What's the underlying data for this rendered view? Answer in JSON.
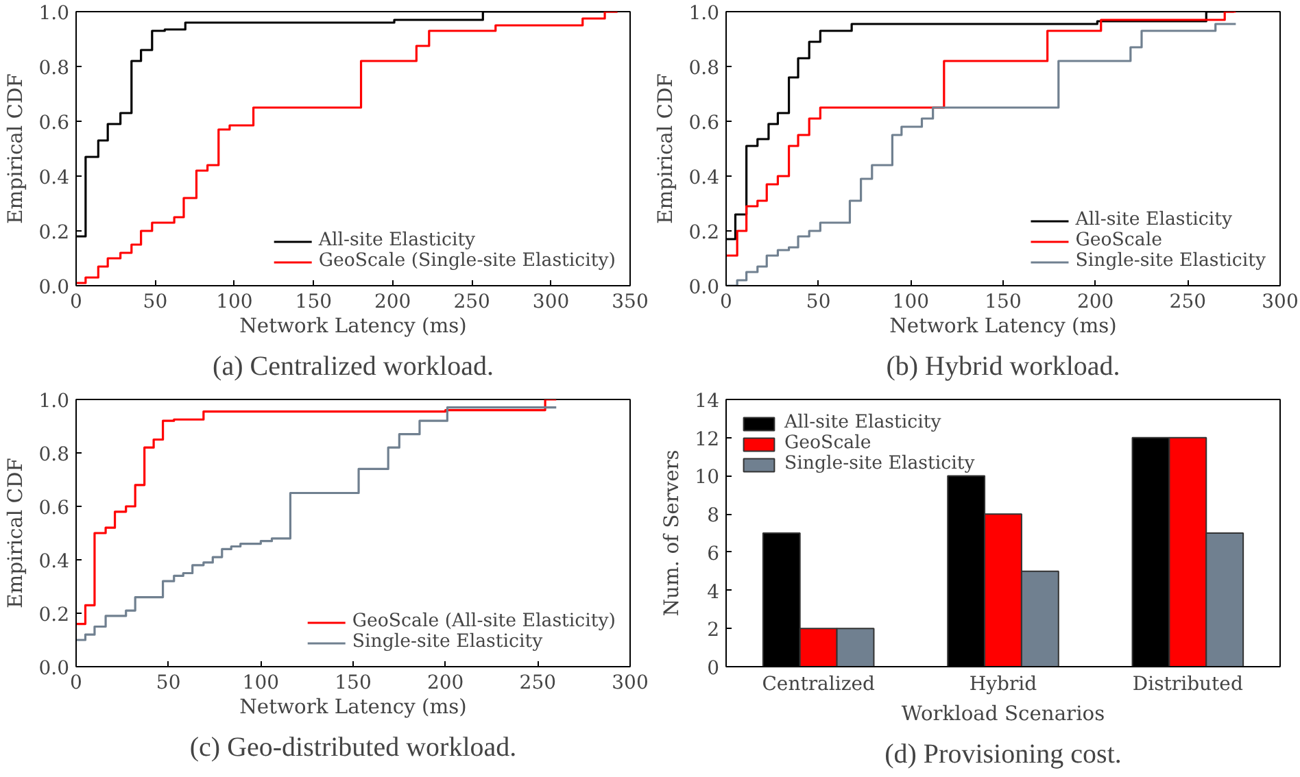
{
  "chart_data": [
    {
      "type": "step",
      "title": "(a) Centralized workload.",
      "xlabel": "Network Latency (ms)",
      "ylabel": "Empirical CDF",
      "xlim": [
        0,
        350
      ],
      "xticks": [
        0,
        50,
        100,
        150,
        200,
        250,
        300,
        350
      ],
      "ylim": [
        0,
        1
      ],
      "yticks": [
        {
          "value": 0,
          "label": "0.0"
        },
        {
          "value": 0.2,
          "label": "0.2"
        },
        {
          "value": 0.4,
          "label": "0.4"
        },
        {
          "value": 0.6,
          "label": "0.6"
        },
        {
          "value": 0.8,
          "label": "0.8"
        },
        {
          "value": 1,
          "label": "1.0"
        }
      ],
      "legend": "bottom right",
      "grid": false,
      "series": [
        {
          "name": "All-site Elasticity",
          "color": "#000000",
          "x": [
            0,
            6,
            14,
            20,
            28,
            35,
            41,
            48,
            56,
            69,
            201,
            257,
            342
          ],
          "values": [
            0.18,
            0.47,
            0.53,
            0.59,
            0.63,
            0.82,
            0.86,
            0.93,
            0.935,
            0.96,
            0.97,
            1.0,
            1.0
          ]
        },
        {
          "name": "GeoScale (Single-site Elasticity)",
          "color": "#ff0000",
          "x": [
            0,
            6,
            14,
            20,
            28,
            35,
            41,
            48,
            62,
            68,
            76,
            83,
            90,
            97,
            112,
            180,
            215,
            223,
            265,
            320,
            334,
            342
          ],
          "values": [
            0.01,
            0.03,
            0.07,
            0.1,
            0.12,
            0.15,
            0.2,
            0.23,
            0.25,
            0.32,
            0.42,
            0.44,
            0.57,
            0.585,
            0.65,
            0.82,
            0.875,
            0.93,
            0.95,
            0.975,
            1.0,
            1.0
          ]
        }
      ]
    },
    {
      "type": "step",
      "title": "(b) Hybrid workload.",
      "xlabel": "Network Latency (ms)",
      "ylabel": "Empirical CDF",
      "xlim": [
        0,
        300
      ],
      "xticks": [
        0,
        50,
        100,
        150,
        200,
        250,
        300
      ],
      "ylim": [
        0,
        1
      ],
      "yticks": [
        {
          "value": 0,
          "label": "0.0"
        },
        {
          "value": 0.2,
          "label": "0.2"
        },
        {
          "value": 0.4,
          "label": "0.4"
        },
        {
          "value": 0.6,
          "label": "0.6"
        },
        {
          "value": 0.8,
          "label": "0.8"
        },
        {
          "value": 1,
          "label": "1.0"
        }
      ],
      "legend": "bottom right",
      "grid": false,
      "series": [
        {
          "name": "All-site Elasticity",
          "color": "#000000",
          "x": [
            0,
            5,
            11,
            17,
            23,
            28,
            34,
            39,
            45,
            51,
            68,
            201,
            260,
            275
          ],
          "values": [
            0.17,
            0.26,
            0.51,
            0.535,
            0.59,
            0.63,
            0.76,
            0.83,
            0.89,
            0.93,
            0.955,
            0.965,
            1.0,
            1.0
          ]
        },
        {
          "name": "GeoScale",
          "color": "#ff0000",
          "x": [
            0,
            6,
            11,
            17,
            22,
            28,
            34,
            39,
            45,
            51,
            118,
            174,
            203,
            270,
            276
          ],
          "values": [
            0.11,
            0.2,
            0.29,
            0.31,
            0.37,
            0.4,
            0.51,
            0.55,
            0.61,
            0.65,
            0.82,
            0.93,
            0.97,
            1.0,
            1.0
          ]
        },
        {
          "name": "Single-site Elasticity",
          "color": "#708090",
          "x": [
            0,
            6,
            11,
            17,
            22,
            28,
            34,
            39,
            45,
            51,
            67,
            73,
            79,
            90,
            95,
            106,
            112,
            180,
            219,
            225,
            265,
            276
          ],
          "values": [
            0.0,
            0.02,
            0.05,
            0.07,
            0.11,
            0.13,
            0.14,
            0.18,
            0.2,
            0.23,
            0.31,
            0.39,
            0.44,
            0.55,
            0.58,
            0.61,
            0.65,
            0.82,
            0.87,
            0.93,
            0.955,
            0.955
          ]
        }
      ]
    },
    {
      "type": "step",
      "title": "(c) Geo-distributed workload.",
      "xlabel": "Network Latency (ms)",
      "ylabel": "Empirical CDF",
      "xlim": [
        0,
        300
      ],
      "xticks": [
        0,
        50,
        100,
        150,
        200,
        250,
        300
      ],
      "ylim": [
        0,
        1
      ],
      "yticks": [
        {
          "value": 0,
          "label": "0.0"
        },
        {
          "value": 0.2,
          "label": "0.2"
        },
        {
          "value": 0.4,
          "label": "0.4"
        },
        {
          "value": 0.6,
          "label": "0.6"
        },
        {
          "value": 0.8,
          "label": "0.8"
        },
        {
          "value": 1,
          "label": "1.0"
        }
      ],
      "legend": "bottom right",
      "grid": false,
      "series": [
        {
          "name": "GeoScale (All-site Elasticity)",
          "color": "#ff0000",
          "x": [
            0,
            5,
            10,
            16,
            21,
            27,
            32,
            37,
            42,
            47,
            53,
            69,
            200,
            254,
            260
          ],
          "values": [
            0.16,
            0.23,
            0.5,
            0.52,
            0.58,
            0.6,
            0.68,
            0.82,
            0.85,
            0.92,
            0.925,
            0.955,
            0.96,
            1.0,
            1.0
          ]
        },
        {
          "name": "Single-site Elasticity",
          "color": "#708090",
          "x": [
            0,
            5,
            10,
            16,
            27,
            32,
            47,
            53,
            58,
            63,
            69,
            74,
            79,
            84,
            89,
            100,
            106,
            116,
            153,
            169,
            175,
            186,
            201,
            260
          ],
          "values": [
            0.1,
            0.12,
            0.15,
            0.19,
            0.21,
            0.26,
            0.32,
            0.34,
            0.35,
            0.38,
            0.39,
            0.41,
            0.44,
            0.45,
            0.46,
            0.47,
            0.48,
            0.65,
            0.74,
            0.82,
            0.87,
            0.92,
            0.97,
            0.97
          ]
        }
      ]
    },
    {
      "type": "bar",
      "title": "(d) Provisioning cost.",
      "xlabel": "Workload Scenarios",
      "ylabel": "Num. of Servers",
      "categories": [
        "Centralized",
        "Hybrid",
        "Distributed"
      ],
      "ylim": [
        0,
        14
      ],
      "yticks": [
        0,
        2,
        4,
        6,
        8,
        10,
        12,
        14
      ],
      "legend": "top left",
      "grid": false,
      "series": [
        {
          "name": "All-site Elasticity",
          "color": "#000000",
          "values": [
            7,
            10,
            12
          ]
        },
        {
          "name": "GeoScale",
          "color": "#ff0000",
          "values": [
            2,
            8,
            12
          ]
        },
        {
          "name": "Single-site Elasticity",
          "color": "#708090",
          "values": [
            2,
            5,
            7
          ]
        }
      ]
    }
  ]
}
